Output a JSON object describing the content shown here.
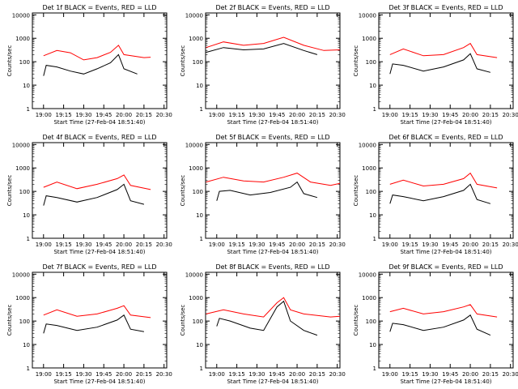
{
  "figure_title": "",
  "panels_common": {
    "ylabel": "Counts/sec",
    "xlabel": "Start Time (27-Feb-04 18:51:40)",
    "yticks": [
      "1",
      "10",
      "100",
      "1000",
      "10000"
    ],
    "xticks": [
      "19:00",
      "19:15",
      "19:30",
      "19:45",
      "20:00",
      "20:15",
      "20:30"
    ],
    "series_colors": {
      "events": "#000000",
      "lld": "#ff0000"
    }
  },
  "chart_data": [
    {
      "type": "line",
      "title": "Det 1f BLACK = Events, RED = LLD",
      "ylim": [
        1,
        12000
      ],
      "xlim": [
        "18:51:40",
        "20:32:00"
      ],
      "yscale": "log",
      "series": [
        {
          "values": [
            [
              "19:00",
              180
            ],
            [
              "19:10",
              300
            ],
            [
              "19:20",
              240
            ],
            [
              "19:30",
              120
            ],
            [
              "19:40",
              150
            ],
            [
              "19:50",
              250
            ],
            [
              "19:56",
              500
            ],
            [
              "20:00",
              200
            ],
            [
              "20:15",
              150
            ],
            [
              "20:20",
              155
            ]
          ]
        },
        {
          "values": [
            [
              "19:00",
              25
            ],
            [
              "19:02",
              70
            ],
            [
              "19:10",
              60
            ],
            [
              "19:20",
              40
            ],
            [
              "19:30",
              30
            ],
            [
              "19:40",
              50
            ],
            [
              "19:50",
              90
            ],
            [
              "19:56",
              200
            ],
            [
              "20:00",
              50
            ],
            [
              "20:10",
              30
            ]
          ]
        }
      ]
    },
    {
      "type": "line",
      "title": "Det 2f BLACK = Events, RED = LLD",
      "ylim": [
        1,
        12000
      ],
      "xlim": [
        "18:51:40",
        "20:32:00"
      ],
      "yscale": "log",
      "series": [
        {
          "values": [
            [
              "18:52",
              400
            ],
            [
              "19:05",
              700
            ],
            [
              "19:20",
              500
            ],
            [
              "19:35",
              600
            ],
            [
              "19:50",
              1100
            ],
            [
              "20:05",
              500
            ],
            [
              "20:20",
              300
            ],
            [
              "20:32",
              320
            ]
          ]
        },
        {
          "values": [
            [
              "18:52",
              250
            ],
            [
              "19:05",
              400
            ],
            [
              "19:20",
              320
            ],
            [
              "19:35",
              350
            ],
            [
              "19:50",
              600
            ],
            [
              "20:05",
              300
            ],
            [
              "20:15",
              200
            ]
          ]
        }
      ]
    },
    {
      "type": "line",
      "title": "Det 3f BLACK = Events, RED = LLD",
      "ylim": [
        1,
        12000
      ],
      "xlim": [
        "18:51:40",
        "20:32:00"
      ],
      "yscale": "log",
      "series": [
        {
          "values": [
            [
              "19:00",
              200
            ],
            [
              "19:10",
              350
            ],
            [
              "19:25",
              180
            ],
            [
              "19:40",
              200
            ],
            [
              "19:55",
              400
            ],
            [
              "20:00",
              600
            ],
            [
              "20:05",
              200
            ],
            [
              "20:20",
              150
            ]
          ]
        },
        {
          "values": [
            [
              "19:00",
              30
            ],
            [
              "19:02",
              80
            ],
            [
              "19:10",
              70
            ],
            [
              "19:25",
              40
            ],
            [
              "19:40",
              60
            ],
            [
              "19:55",
              120
            ],
            [
              "20:00",
              220
            ],
            [
              "20:05",
              50
            ],
            [
              "20:15",
              35
            ]
          ]
        }
      ]
    },
    {
      "type": "line",
      "title": "Det 4f BLACK = Events, RED = LLD",
      "ylim": [
        1,
        12000
      ],
      "xlim": [
        "18:51:40",
        "20:32:00"
      ],
      "yscale": "log",
      "series": [
        {
          "values": [
            [
              "19:00",
              150
            ],
            [
              "19:10",
              250
            ],
            [
              "19:25",
              130
            ],
            [
              "19:40",
              200
            ],
            [
              "19:55",
              350
            ],
            [
              "20:00",
              500
            ],
            [
              "20:05",
              180
            ],
            [
              "20:20",
              120
            ]
          ]
        },
        {
          "values": [
            [
              "19:00",
              25
            ],
            [
              "19:02",
              65
            ],
            [
              "19:10",
              55
            ],
            [
              "19:25",
              35
            ],
            [
              "19:40",
              55
            ],
            [
              "19:55",
              120
            ],
            [
              "20:00",
              200
            ],
            [
              "20:05",
              40
            ],
            [
              "20:15",
              28
            ]
          ]
        }
      ]
    },
    {
      "type": "line",
      "title": "Det 5f BLACK = Events, RED = LLD",
      "ylim": [
        1,
        12000
      ],
      "xlim": [
        "18:51:40",
        "20:32:00"
      ],
      "yscale": "log",
      "series": [
        {
          "values": [
            [
              "18:52",
              250
            ],
            [
              "19:05",
              400
            ],
            [
              "19:20",
              280
            ],
            [
              "19:35",
              250
            ],
            [
              "19:50",
              400
            ],
            [
              "20:00",
              600
            ],
            [
              "20:10",
              250
            ],
            [
              "20:25",
              180
            ],
            [
              "20:32",
              220
            ]
          ]
        },
        {
          "values": [
            [
              "19:00",
              40
            ],
            [
              "19:02",
              100
            ],
            [
              "19:10",
              110
            ],
            [
              "19:25",
              70
            ],
            [
              "19:40",
              90
            ],
            [
              "19:55",
              150
            ],
            [
              "20:00",
              250
            ],
            [
              "20:05",
              80
            ],
            [
              "20:15",
              55
            ]
          ]
        }
      ]
    },
    {
      "type": "line",
      "title": "Det 6f BLACK = Events, RED = LLD",
      "ylim": [
        1,
        12000
      ],
      "xlim": [
        "18:51:40",
        "20:32:00"
      ],
      "yscale": "log",
      "series": [
        {
          "values": [
            [
              "19:00",
              200
            ],
            [
              "19:10",
              300
            ],
            [
              "19:25",
              170
            ],
            [
              "19:40",
              200
            ],
            [
              "19:55",
              350
            ],
            [
              "20:00",
              600
            ],
            [
              "20:05",
              200
            ],
            [
              "20:20",
              140
            ]
          ]
        },
        {
          "values": [
            [
              "19:00",
              30
            ],
            [
              "19:02",
              70
            ],
            [
              "19:10",
              60
            ],
            [
              "19:25",
              40
            ],
            [
              "19:40",
              60
            ],
            [
              "19:55",
              110
            ],
            [
              "20:00",
              200
            ],
            [
              "20:05",
              45
            ],
            [
              "20:15",
              30
            ]
          ]
        }
      ]
    },
    {
      "type": "line",
      "title": "Det 7f BLACK = Events, RED = LLD",
      "ylim": [
        1,
        12000
      ],
      "xlim": [
        "18:51:40",
        "20:32:00"
      ],
      "yscale": "log",
      "series": [
        {
          "values": [
            [
              "19:00",
              180
            ],
            [
              "19:10",
              300
            ],
            [
              "19:25",
              160
            ],
            [
              "19:40",
              200
            ],
            [
              "19:55",
              350
            ],
            [
              "20:00",
              450
            ],
            [
              "20:05",
              180
            ],
            [
              "20:20",
              140
            ]
          ]
        },
        {
          "values": [
            [
              "19:00",
              30
            ],
            [
              "19:02",
              75
            ],
            [
              "19:10",
              65
            ],
            [
              "19:25",
              40
            ],
            [
              "19:40",
              55
            ],
            [
              "19:55",
              110
            ],
            [
              "20:00",
              180
            ],
            [
              "20:05",
              45
            ],
            [
              "20:15",
              35
            ]
          ]
        }
      ]
    },
    {
      "type": "line",
      "title": "Det 8f BLACK = Events, RED = LLD",
      "ylim": [
        1,
        12000
      ],
      "xlim": [
        "18:51:40",
        "20:32:00"
      ],
      "yscale": "log",
      "series": [
        {
          "values": [
            [
              "18:52",
              200
            ],
            [
              "19:05",
              300
            ],
            [
              "19:20",
              200
            ],
            [
              "19:35",
              150
            ],
            [
              "19:45",
              600
            ],
            [
              "19:50",
              1000
            ],
            [
              "19:55",
              300
            ],
            [
              "20:05",
              200
            ],
            [
              "20:25",
              150
            ],
            [
              "20:32",
              160
            ]
          ]
        },
        {
          "values": [
            [
              "19:00",
              60
            ],
            [
              "19:02",
              130
            ],
            [
              "19:10",
              100
            ],
            [
              "19:25",
              50
            ],
            [
              "19:35",
              40
            ],
            [
              "19:45",
              400
            ],
            [
              "19:50",
              700
            ],
            [
              "19:55",
              100
            ],
            [
              "20:05",
              40
            ],
            [
              "20:15",
              25
            ]
          ]
        }
      ]
    },
    {
      "type": "line",
      "title": "Det 9f BLACK = Events, RED = LLD",
      "ylim": [
        1,
        12000
      ],
      "xlim": [
        "18:51:40",
        "20:32:00"
      ],
      "yscale": "log",
      "series": [
        {
          "values": [
            [
              "19:00",
              250
            ],
            [
              "19:10",
              350
            ],
            [
              "19:25",
              200
            ],
            [
              "19:40",
              250
            ],
            [
              "19:55",
              400
            ],
            [
              "20:00",
              500
            ],
            [
              "20:05",
              200
            ],
            [
              "20:20",
              150
            ]
          ]
        },
        {
          "values": [
            [
              "19:00",
              35
            ],
            [
              "19:02",
              80
            ],
            [
              "19:10",
              70
            ],
            [
              "19:25",
              40
            ],
            [
              "19:40",
              55
            ],
            [
              "19:55",
              110
            ],
            [
              "20:00",
              180
            ],
            [
              "20:05",
              45
            ],
            [
              "20:15",
              25
            ]
          ]
        }
      ]
    }
  ]
}
